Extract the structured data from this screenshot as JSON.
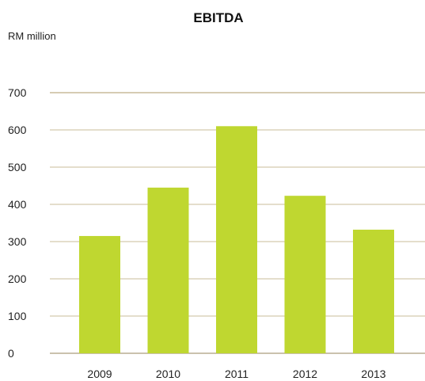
{
  "chart_data": {
    "type": "bar",
    "title": "EBITDA",
    "unit_label": "RM million",
    "xlabel": "",
    "ylabel": "",
    "categories": [
      "2009",
      "2010",
      "2011",
      "2012",
      "2013"
    ],
    "values": [
      315,
      445,
      610,
      423,
      332
    ],
    "ylim": [
      0,
      700
    ],
    "yticks": [
      0,
      100,
      200,
      300,
      400,
      500,
      600,
      700
    ],
    "grid": true,
    "legend": "none",
    "colors": {
      "bar": "#bfd730",
      "gridline": "#c9bc9a",
      "baseline": "#b9ae92"
    }
  }
}
